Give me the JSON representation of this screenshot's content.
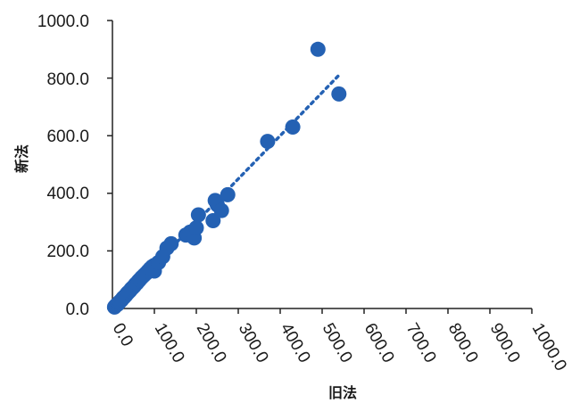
{
  "chart_data": {
    "type": "scatter",
    "xlabel": "旧法",
    "ylabel": "新法",
    "xlim": [
      0,
      1000
    ],
    "ylim": [
      0,
      1000
    ],
    "x_ticks": [
      "0.0",
      "100.0",
      "200.0",
      "300.0",
      "400.0",
      "500.0",
      "600.0",
      "700.0",
      "800.0",
      "900.0",
      "1000.0"
    ],
    "y_ticks": [
      "0.0",
      "200.0",
      "400.0",
      "600.0",
      "800.0",
      "1000.0"
    ],
    "grid": false,
    "trendline": {
      "style": "dotted",
      "x_range": [
        0,
        540
      ],
      "slope": 1.5,
      "intercept": 0
    },
    "colors": {
      "points": "#2461b3",
      "trendline": "#2461b3",
      "axis": "#222222"
    },
    "points": [
      {
        "x": 5,
        "y": 5
      },
      {
        "x": 8,
        "y": 10
      },
      {
        "x": 12,
        "y": 14
      },
      {
        "x": 15,
        "y": 20
      },
      {
        "x": 18,
        "y": 24
      },
      {
        "x": 22,
        "y": 30
      },
      {
        "x": 25,
        "y": 36
      },
      {
        "x": 28,
        "y": 40
      },
      {
        "x": 32,
        "y": 46
      },
      {
        "x": 35,
        "y": 52
      },
      {
        "x": 38,
        "y": 56
      },
      {
        "x": 42,
        "y": 62
      },
      {
        "x": 45,
        "y": 68
      },
      {
        "x": 48,
        "y": 72
      },
      {
        "x": 52,
        "y": 78
      },
      {
        "x": 55,
        "y": 84
      },
      {
        "x": 58,
        "y": 88
      },
      {
        "x": 62,
        "y": 95
      },
      {
        "x": 65,
        "y": 100
      },
      {
        "x": 70,
        "y": 108
      },
      {
        "x": 75,
        "y": 115
      },
      {
        "x": 80,
        "y": 122
      },
      {
        "x": 85,
        "y": 130
      },
      {
        "x": 90,
        "y": 138
      },
      {
        "x": 95,
        "y": 145
      },
      {
        "x": 100,
        "y": 150
      },
      {
        "x": 100,
        "y": 130
      },
      {
        "x": 110,
        "y": 160
      },
      {
        "x": 120,
        "y": 180
      },
      {
        "x": 130,
        "y": 210
      },
      {
        "x": 140,
        "y": 225
      },
      {
        "x": 175,
        "y": 255
      },
      {
        "x": 185,
        "y": 265
      },
      {
        "x": 195,
        "y": 245
      },
      {
        "x": 200,
        "y": 280
      },
      {
        "x": 205,
        "y": 325
      },
      {
        "x": 240,
        "y": 305
      },
      {
        "x": 245,
        "y": 375
      },
      {
        "x": 250,
        "y": 360
      },
      {
        "x": 260,
        "y": 340
      },
      {
        "x": 275,
        "y": 395
      },
      {
        "x": 370,
        "y": 580
      },
      {
        "x": 430,
        "y": 630
      },
      {
        "x": 490,
        "y": 900
      },
      {
        "x": 540,
        "y": 745
      }
    ]
  }
}
